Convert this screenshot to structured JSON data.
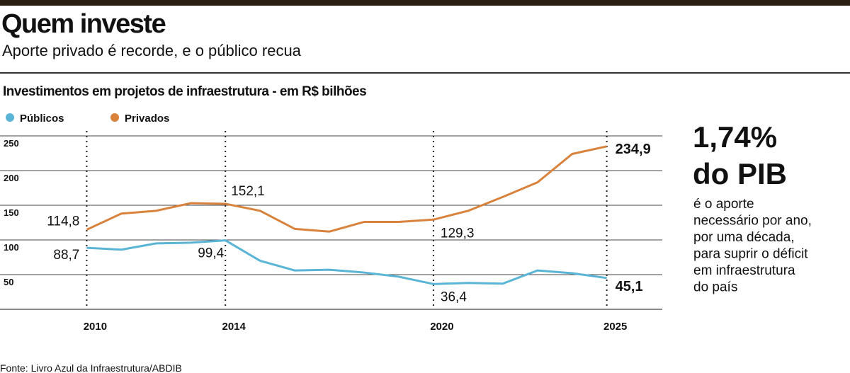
{
  "chart_data": {
    "type": "line",
    "title": "Quem investe",
    "subtitle": "Aporte privado é recorde, e o público recua",
    "chart_title": "Investimentos em projetos de infraestrutura - em R$ bilhões",
    "x": [
      2010,
      2011,
      2012,
      2013,
      2014,
      2015,
      2016,
      2017,
      2018,
      2019,
      2020,
      2021,
      2022,
      2023,
      2024,
      2025
    ],
    "series": [
      {
        "name": "Públicos",
        "color": "#5ab4d6",
        "values": [
          88.7,
          86,
          95,
          96,
          99.4,
          70,
          56,
          57,
          53,
          47,
          36.4,
          38,
          37,
          56,
          52,
          45.1
        ],
        "value_labels": [
          "88,7",
          null,
          null,
          null,
          "99,4",
          null,
          null,
          null,
          null,
          null,
          "36,4",
          null,
          null,
          null,
          null,
          "45,1"
        ]
      },
      {
        "name": "Privados",
        "color": "#d9823b",
        "values": [
          114.8,
          138,
          142,
          153,
          152.1,
          142,
          116,
          112,
          126,
          126,
          129.3,
          142,
          162,
          183,
          224,
          234.9
        ],
        "value_labels": [
          "114,8",
          null,
          null,
          null,
          "152,1",
          null,
          null,
          null,
          null,
          null,
          "129,3",
          null,
          null,
          null,
          null,
          "234,9"
        ]
      }
    ],
    "xlim": [
      2007.5,
      2026.6
    ],
    "xticks": [
      2010,
      2014,
      2020,
      2025
    ],
    "ylim": [
      0,
      250
    ],
    "yticks": [
      50,
      100,
      150,
      200,
      250
    ],
    "grid": true,
    "callout": {
      "headline": [
        "1,74%",
        "do PIB"
      ],
      "text": [
        "é o aporte",
        "necessário por ano,",
        "por uma década,",
        "para suprir o déficit",
        "em infraestrutura",
        "do país"
      ],
      "color": "#1f6c8f"
    },
    "source": "Fonte: Livro Azul da Infraestrutura/ABDIB"
  }
}
